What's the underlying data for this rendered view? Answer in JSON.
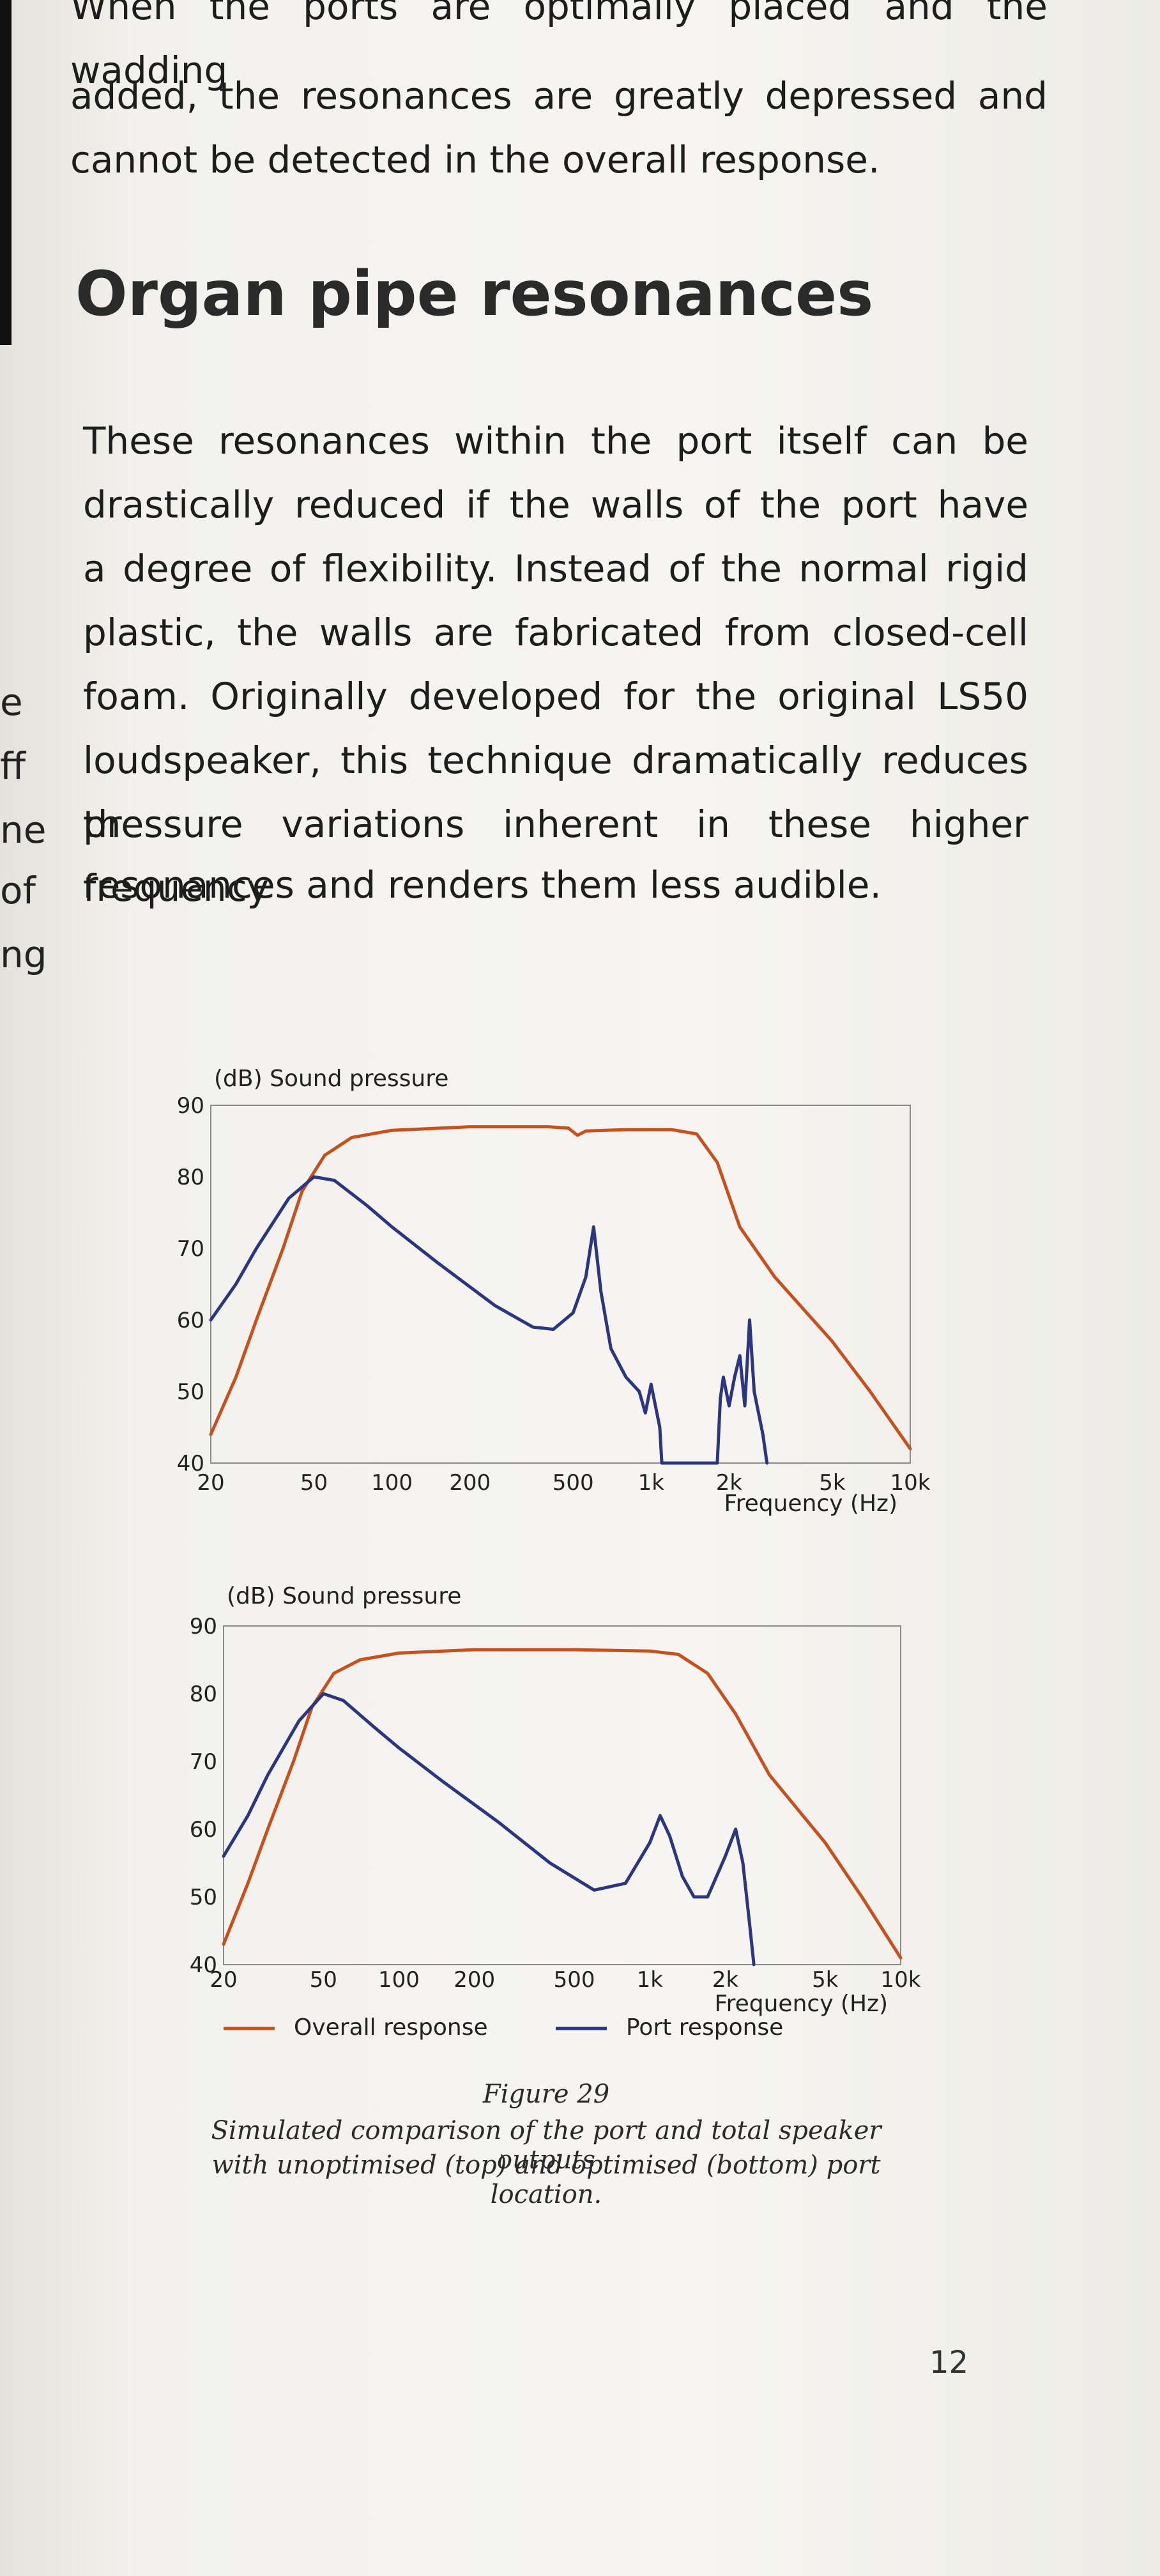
{
  "top_paragraph_lines": [
    "When the ports are optimally placed and the wadding",
    "added, the resonances are greatly depressed and",
    "cannot be detected in the overall response."
  ],
  "heading": "Organ pipe resonances",
  "body_paragraph_lines": [
    "These resonances within the port itself can be",
    "drastically reduced if the walls of the port have",
    "a degree of flexibility. Instead of the normal rigid",
    "plastic, the walls are fabricated from closed-cell",
    "foam. Originally developed for the original LS50",
    "loudspeaker, this technique dramatically reduces the",
    "pressure variations inherent in these higher frequency",
    "resonances and renders them less audible."
  ],
  "margin_fragments": [
    "e",
    "ff",
    "ne",
    "of",
    "ng"
  ],
  "figure": {
    "label": "Figure 29",
    "caption_lines": [
      "Simulated comparison of the port and total speaker outputs",
      "with unoptimised (top) and optimised (bottom) port location."
    ]
  },
  "page_number": "12",
  "chart_data": [
    {
      "type": "line",
      "title": "(dB) Sound pressure",
      "xlabel": "Frequency (Hz)",
      "ylabel": "",
      "x_scale": "log",
      "xlim": [
        20,
        10000
      ],
      "ylim": [
        40,
        90
      ],
      "y_ticks": [
        "90",
        "80",
        "70",
        "60",
        "50",
        "40"
      ],
      "x_ticks": [
        "20",
        "50",
        "100",
        "200",
        "500",
        "1k",
        "2k",
        "5k",
        "10k"
      ],
      "series": [
        {
          "color": "#c8501c",
          "points": [
            [
              20,
              44
            ],
            [
              25,
              52
            ],
            [
              30,
              60
            ],
            [
              38,
              70
            ],
            [
              45,
              78
            ],
            [
              55,
              83
            ],
            [
              70,
              85.5
            ],
            [
              100,
              86.5
            ],
            [
              200,
              87
            ],
            [
              400,
              87
            ],
            [
              480,
              86.8
            ],
            [
              520,
              85.8
            ],
            [
              560,
              86.4
            ],
            [
              800,
              86.6
            ],
            [
              1200,
              86.6
            ],
            [
              1500,
              86
            ],
            [
              1800,
              82
            ],
            [
              2200,
              73
            ],
            [
              3000,
              66
            ],
            [
              5000,
              57
            ],
            [
              7000,
              50
            ],
            [
              10000,
              42
            ]
          ]
        },
        {
          "color": "#2c3580",
          "points": [
            [
              20,
              60
            ],
            [
              25,
              65
            ],
            [
              30,
              70
            ],
            [
              40,
              77
            ],
            [
              50,
              80
            ],
            [
              60,
              79.5
            ],
            [
              80,
              76
            ],
            [
              100,
              73
            ],
            [
              150,
              68
            ],
            [
              250,
              62
            ],
            [
              350,
              59
            ],
            [
              420,
              58.7
            ],
            [
              500,
              61
            ],
            [
              560,
              66
            ],
            [
              600,
              73
            ],
            [
              640,
              64
            ],
            [
              700,
              56
            ],
            [
              800,
              52
            ],
            [
              900,
              50
            ],
            [
              950,
              47
            ],
            [
              1000,
              51
            ],
            [
              1080,
              45
            ],
            [
              1100,
              40
            ],
            [
              1800,
              40
            ],
            [
              1850,
              49
            ],
            [
              1900,
              52
            ],
            [
              2000,
              48
            ],
            [
              2100,
              52
            ],
            [
              2200,
              55
            ],
            [
              2300,
              48
            ],
            [
              2400,
              60
            ],
            [
              2500,
              50
            ],
            [
              2700,
              44
            ],
            [
              2800,
              40
            ]
          ]
        }
      ]
    },
    {
      "type": "line",
      "title": "(dB) Sound pressure",
      "xlabel": "Frequency (Hz)",
      "ylabel": "",
      "x_scale": "log",
      "xlim": [
        20,
        10000
      ],
      "ylim": [
        40,
        90
      ],
      "y_ticks": [
        "90",
        "80",
        "70",
        "60",
        "50",
        "40"
      ],
      "x_ticks": [
        "20",
        "50",
        "100",
        "200",
        "500",
        "1k",
        "2k",
        "5k",
        "10k"
      ],
      "legend": [
        {
          "label": "Overall response",
          "color": "#c8501c"
        },
        {
          "label": "Port response",
          "color": "#2c3580"
        }
      ],
      "series": [
        {
          "color": "#c8501c",
          "points": [
            [
              20,
              43
            ],
            [
              25,
              52
            ],
            [
              30,
              60
            ],
            [
              38,
              70
            ],
            [
              45,
              78
            ],
            [
              55,
              83
            ],
            [
              70,
              85
            ],
            [
              100,
              86
            ],
            [
              200,
              86.5
            ],
            [
              500,
              86.5
            ],
            [
              1000,
              86.3
            ],
            [
              1300,
              85.8
            ],
            [
              1700,
              83
            ],
            [
              2200,
              77
            ],
            [
              3000,
              68
            ],
            [
              5000,
              58
            ],
            [
              7000,
              50
            ],
            [
              10000,
              41
            ]
          ]
        },
        {
          "color": "#2c3580",
          "points": [
            [
              20,
              56
            ],
            [
              25,
              62
            ],
            [
              30,
              68
            ],
            [
              40,
              76
            ],
            [
              50,
              80
            ],
            [
              60,
              79
            ],
            [
              80,
              75
            ],
            [
              100,
              72
            ],
            [
              150,
              67
            ],
            [
              250,
              61
            ],
            [
              400,
              55
            ],
            [
              600,
              51
            ],
            [
              800,
              52
            ],
            [
              1000,
              58
            ],
            [
              1100,
              62
            ],
            [
              1200,
              59
            ],
            [
              1350,
              53
            ],
            [
              1500,
              50
            ],
            [
              1700,
              50
            ],
            [
              2000,
              56
            ],
            [
              2200,
              60
            ],
            [
              2350,
              55
            ],
            [
              2500,
              46
            ],
            [
              2600,
              40
            ]
          ]
        }
      ]
    }
  ]
}
